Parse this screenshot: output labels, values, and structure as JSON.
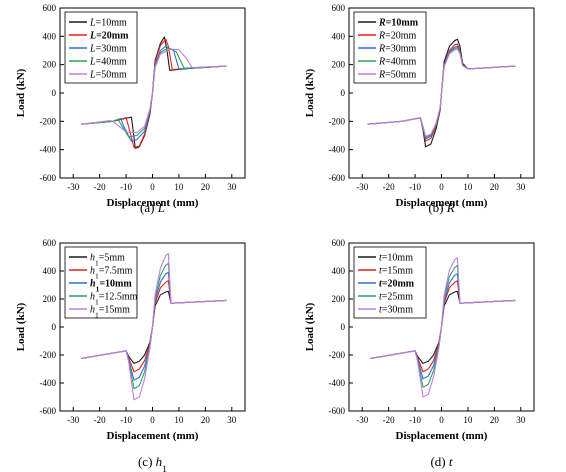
{
  "chart_data": [
    {
      "type": "line",
      "caption_letter": "(a)",
      "caption_var": "L",
      "caption_sub": "",
      "xlabel": "Displacement (mm)",
      "ylabel": "Load (kN)",
      "xlim": [
        -35,
        35
      ],
      "ylim": [
        -600,
        600
      ],
      "xticks": [
        -30,
        -20,
        -10,
        0,
        10,
        20,
        30
      ],
      "yticks": [
        -600,
        -400,
        -200,
        0,
        200,
        400,
        600
      ],
      "legend_position": "top-left",
      "series": [
        {
          "var": "L",
          "sub": "",
          "rest": "=10mm",
          "bold": false,
          "color": "#1a1a1a",
          "x": [
            -27,
            -15,
            -8,
            -7.5,
            -6.5,
            -5,
            -3,
            -1,
            0,
            1,
            3,
            4.5,
            5.5,
            6.5,
            15,
            28
          ],
          "y": [
            -220,
            -200,
            -170,
            -240,
            -390,
            -380,
            -300,
            -150,
            0,
            230,
            350,
            395,
            300,
            160,
            175,
            190
          ]
        },
        {
          "var": "L",
          "sub": "",
          "rest": "=20mm",
          "bold": true,
          "color": "#e8201c",
          "x": [
            -27,
            -15,
            -10,
            -9,
            -7,
            -5,
            -3,
            -1,
            0,
            1,
            3,
            5,
            6,
            7.5,
            15,
            28
          ],
          "y": [
            -220,
            -200,
            -175,
            -240,
            -385,
            -375,
            -290,
            -140,
            0,
            220,
            335,
            380,
            330,
            165,
            175,
            190
          ]
        },
        {
          "var": "L",
          "sub": "",
          "rest": "=30mm",
          "bold": false,
          "color": "#2f6fd8",
          "x": [
            -27,
            -15,
            -12,
            -11,
            -8,
            -6,
            -3,
            -1,
            0,
            1,
            3,
            5,
            8,
            10,
            15,
            28
          ],
          "y": [
            -220,
            -200,
            -180,
            -230,
            -340,
            -330,
            -270,
            -130,
            0,
            200,
            300,
            330,
            300,
            170,
            175,
            190
          ]
        },
        {
          "var": "L",
          "sub": "",
          "rest": "=40mm",
          "bold": false,
          "color": "#2ca25f",
          "x": [
            -27,
            -15,
            -13,
            -12,
            -9,
            -6,
            -3,
            -1,
            0,
            1,
            3,
            6,
            9,
            12,
            15,
            28
          ],
          "y": [
            -220,
            -200,
            -185,
            -220,
            -310,
            -300,
            -250,
            -120,
            0,
            190,
            285,
            320,
            290,
            175,
            178,
            190
          ]
        },
        {
          "var": "L",
          "sub": "",
          "rest": "=50mm",
          "bold": false,
          "color": "#c77ce0",
          "x": [
            -27,
            -16,
            -15,
            -10,
            -6,
            -3,
            -1,
            0,
            1,
            3,
            7,
            10,
            13,
            15,
            28
          ],
          "y": [
            -220,
            -195,
            -200,
            -275,
            -280,
            -235,
            -110,
            0,
            180,
            275,
            310,
            305,
            240,
            180,
            190
          ]
        }
      ]
    },
    {
      "type": "line",
      "caption_letter": "(b)",
      "caption_var": "R",
      "caption_sub": "",
      "xlabel": "Displacement (mm)",
      "ylabel": "Load (kN)",
      "xlim": [
        -35,
        35
      ],
      "ylim": [
        -600,
        600
      ],
      "xticks": [
        -30,
        -20,
        -10,
        0,
        10,
        20,
        30
      ],
      "yticks": [
        -600,
        -400,
        -200,
        0,
        200,
        400,
        600
      ],
      "legend_position": "top-left",
      "series": [
        {
          "var": "R",
          "sub": "",
          "rest": "=10mm",
          "bold": true,
          "color": "#1a1a1a",
          "x": [
            -28,
            -15,
            -8,
            -7,
            -6,
            -4,
            -2,
            -0.5,
            0,
            1,
            3,
            5,
            6,
            7,
            8,
            10,
            28
          ],
          "y": [
            -220,
            -200,
            -175,
            -260,
            -380,
            -360,
            -250,
            -120,
            0,
            220,
            330,
            370,
            380,
            330,
            210,
            170,
            190
          ]
        },
        {
          "var": "R",
          "sub": "",
          "rest": "=20mm",
          "bold": false,
          "color": "#e8201c",
          "x": [
            -28,
            -15,
            -8,
            -7,
            -6,
            -4,
            -2,
            -0.5,
            0,
            1,
            3,
            5,
            6,
            7,
            8,
            10,
            28
          ],
          "y": [
            -220,
            -200,
            -175,
            -250,
            -340,
            -320,
            -230,
            -110,
            0,
            200,
            300,
            340,
            345,
            300,
            200,
            170,
            190
          ]
        },
        {
          "var": "R",
          "sub": "",
          "rest": "=30mm",
          "bold": false,
          "color": "#2f6fd8",
          "x": [
            -28,
            -15,
            -8,
            -7,
            -6,
            -4,
            -2,
            -0.5,
            0,
            1,
            3,
            5,
            6,
            7,
            8,
            10,
            28
          ],
          "y": [
            -220,
            -200,
            -175,
            -245,
            -325,
            -305,
            -220,
            -105,
            0,
            195,
            290,
            325,
            330,
            290,
            195,
            170,
            190
          ]
        },
        {
          "var": "R",
          "sub": "",
          "rest": "=40mm",
          "bold": false,
          "color": "#2ca25f",
          "x": [
            -28,
            -15,
            -8,
            -7,
            -6,
            -4,
            -2,
            -0.5,
            0,
            1,
            3,
            5,
            6,
            7,
            8,
            10,
            28
          ],
          "y": [
            -220,
            -200,
            -175,
            -240,
            -315,
            -295,
            -215,
            -100,
            0,
            190,
            285,
            315,
            320,
            280,
            195,
            170,
            190
          ]
        },
        {
          "var": "R",
          "sub": "",
          "rest": "=50mm",
          "bold": false,
          "color": "#c77ce0",
          "x": [
            -28,
            -15,
            -8,
            -7,
            -6,
            -4,
            -2,
            -0.5,
            0,
            1,
            3,
            5,
            6,
            7,
            8,
            10,
            28
          ],
          "y": [
            -220,
            -200,
            -175,
            -235,
            -305,
            -290,
            -210,
            -100,
            0,
            185,
            275,
            305,
            310,
            275,
            195,
            170,
            190
          ]
        }
      ]
    },
    {
      "type": "line",
      "caption_letter": "(c)",
      "caption_var": "h",
      "caption_sub": "1",
      "xlabel": "Displacement (mm)",
      "ylabel": "Load (kN)",
      "xlim": [
        -35,
        35
      ],
      "ylim": [
        -600,
        600
      ],
      "xticks": [
        -30,
        -20,
        -10,
        0,
        10,
        20,
        30
      ],
      "yticks": [
        -600,
        -400,
        -200,
        0,
        200,
        400,
        600
      ],
      "legend_position": "top-left",
      "series": [
        {
          "var": "h",
          "sub": "1",
          "rest": "=5mm",
          "bold": false,
          "color": "#1a1a1a",
          "x": [
            -27,
            -10,
            -9,
            -7,
            -5,
            -3,
            -1,
            0,
            1,
            3,
            5,
            6,
            7,
            28
          ],
          "y": [
            -225,
            -170,
            -210,
            -260,
            -245,
            -200,
            -110,
            0,
            150,
            230,
            250,
            255,
            170,
            190
          ]
        },
        {
          "var": "h",
          "sub": "1",
          "rest": "=7.5mm",
          "bold": false,
          "color": "#e8201c",
          "x": [
            -27,
            -10,
            -9,
            -7,
            -5,
            -3,
            -1,
            0,
            1,
            3,
            5,
            6,
            7,
            28
          ],
          "y": [
            -225,
            -170,
            -220,
            -320,
            -300,
            -240,
            -120,
            0,
            170,
            280,
            320,
            330,
            170,
            190
          ]
        },
        {
          "var": "h",
          "sub": "1",
          "rest": "=10mm",
          "bold": true,
          "color": "#2f6fd8",
          "x": [
            -27,
            -10,
            -9,
            -7,
            -5,
            -3,
            -1,
            0,
            1,
            3,
            5,
            6,
            7,
            28
          ],
          "y": [
            -225,
            -170,
            -230,
            -380,
            -360,
            -280,
            -130,
            0,
            190,
            320,
            380,
            390,
            170,
            190
          ]
        },
        {
          "var": "h",
          "sub": "1",
          "rest": "=12.5mm",
          "bold": false,
          "color": "#2ca25f",
          "x": [
            -27,
            -10,
            -9,
            -7,
            -5,
            -3,
            -1,
            0,
            1,
            3,
            5,
            6,
            7,
            28
          ],
          "y": [
            -225,
            -170,
            -240,
            -440,
            -420,
            -320,
            -140,
            0,
            210,
            370,
            440,
            455,
            170,
            190
          ]
        },
        {
          "var": "h",
          "sub": "1",
          "rest": "=15mm",
          "bold": false,
          "color": "#c77ce0",
          "x": [
            -27,
            -10,
            -9,
            -7,
            -5,
            -3,
            -1,
            0,
            1,
            3,
            5,
            6,
            7,
            28
          ],
          "y": [
            -225,
            -170,
            -250,
            -520,
            -500,
            -370,
            -150,
            0,
            230,
            420,
            510,
            525,
            170,
            190
          ]
        }
      ]
    },
    {
      "type": "line",
      "caption_letter": "(d)",
      "caption_var": "t",
      "caption_sub": "",
      "xlabel": "Displacement (mm)",
      "ylabel": "Load (kN)",
      "xlim": [
        -35,
        35
      ],
      "ylim": [
        -600,
        600
      ],
      "xticks": [
        -30,
        -20,
        -10,
        0,
        10,
        20,
        30
      ],
      "yticks": [
        -600,
        -400,
        -200,
        0,
        200,
        400,
        600
      ],
      "legend_position": "top-left",
      "series": [
        {
          "var": "t",
          "sub": "",
          "rest": "=10mm",
          "bold": false,
          "color": "#1a1a1a",
          "x": [
            -27,
            -10,
            -9,
            -7,
            -5,
            -3,
            -1,
            0,
            1,
            3,
            5,
            6,
            7,
            28
          ],
          "y": [
            -225,
            -170,
            -210,
            -260,
            -245,
            -200,
            -110,
            0,
            150,
            230,
            250,
            255,
            170,
            190
          ]
        },
        {
          "var": "t",
          "sub": "",
          "rest": "=15mm",
          "bold": false,
          "color": "#e8201c",
          "x": [
            -27,
            -10,
            -9,
            -7,
            -5,
            -3,
            -1,
            0,
            1,
            3,
            5,
            6,
            7,
            28
          ],
          "y": [
            -225,
            -170,
            -220,
            -320,
            -300,
            -240,
            -120,
            0,
            170,
            280,
            320,
            330,
            170,
            190
          ]
        },
        {
          "var": "t",
          "sub": "",
          "rest": "=20mm",
          "bold": true,
          "color": "#2f6fd8",
          "x": [
            -27,
            -10,
            -9,
            -7,
            -5,
            -3,
            -1,
            0,
            1,
            3,
            5,
            6,
            7,
            28
          ],
          "y": [
            -225,
            -170,
            -230,
            -370,
            -350,
            -275,
            -130,
            0,
            185,
            315,
            370,
            380,
            170,
            190
          ]
        },
        {
          "var": "t",
          "sub": "",
          "rest": "=25mm",
          "bold": false,
          "color": "#2ca25f",
          "x": [
            -27,
            -10,
            -9,
            -7,
            -5,
            -3,
            -1,
            0,
            1,
            3,
            5,
            6,
            7,
            28
          ],
          "y": [
            -225,
            -170,
            -240,
            -430,
            -410,
            -310,
            -140,
            0,
            205,
            360,
            425,
            440,
            170,
            190
          ]
        },
        {
          "var": "t",
          "sub": "",
          "rest": "=30mm",
          "bold": false,
          "color": "#c77ce0",
          "x": [
            -27,
            -10,
            -9,
            -7,
            -5,
            -3,
            -1,
            0,
            1,
            3,
            5,
            6,
            7,
            28
          ],
          "y": [
            -225,
            -170,
            -250,
            -500,
            -480,
            -355,
            -150,
            0,
            225,
            405,
            480,
            495,
            170,
            190
          ]
        }
      ]
    }
  ]
}
